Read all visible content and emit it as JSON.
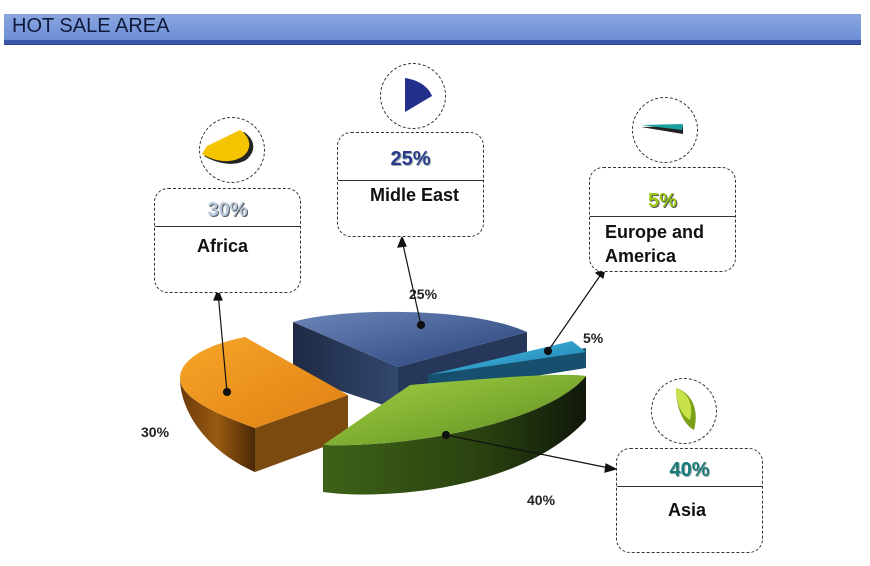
{
  "header": {
    "title": "HOT SALE AREA"
  },
  "chart_data": {
    "type": "pie",
    "title": "HOT SALE AREA",
    "slices": [
      {
        "label": "Africa",
        "value": 30,
        "pct_text": "30%",
        "color": "#e8911a",
        "text_color": "#b8c8dc"
      },
      {
        "label": "Midle East",
        "value": 25,
        "pct_text": "25%",
        "color": "#3a5a9a",
        "text_color": "#2a3a8a"
      },
      {
        "label": "Europe and America",
        "value": 5,
        "pct_text": "5%",
        "color": "#2aa7d6",
        "text_color": "#9ac81a"
      },
      {
        "label": "Asia",
        "value": 40,
        "pct_text": "40%",
        "color": "#7fb334",
        "text_color": "#1a7a7a"
      }
    ]
  }
}
